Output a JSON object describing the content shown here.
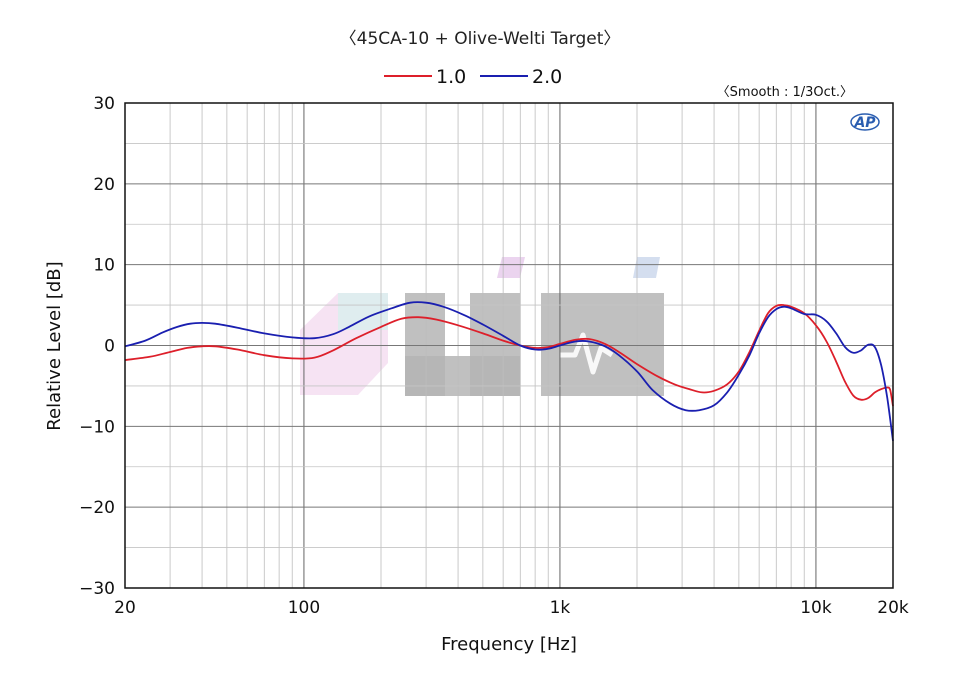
{
  "chart_data": {
    "type": "line",
    "title": "〈45CA-10 + Olive-Welti Target〉",
    "smoothing_note": "〈Smooth : 1/3Oct.〉",
    "xlabel": "Frequency [Hz]",
    "ylabel": "Relative Level [dB]",
    "x_scale": "log",
    "xlim": [
      20,
      20000
    ],
    "ylim": [
      -30,
      30
    ],
    "x_ticks": [
      {
        "value": 20,
        "label": "20"
      },
      {
        "value": 100,
        "label": "100"
      },
      {
        "value": 1000,
        "label": "1k"
      },
      {
        "value": 10000,
        "label": "10k"
      },
      {
        "value": 20000,
        "label": "20k"
      }
    ],
    "y_ticks": [
      {
        "value": 30,
        "label": "30"
      },
      {
        "value": 20,
        "label": "20"
      },
      {
        "value": 10,
        "label": "10"
      },
      {
        "value": 0,
        "label": "0"
      },
      {
        "value": -10,
        "label": "−10"
      },
      {
        "value": -20,
        "label": "−20"
      },
      {
        "value": -30,
        "label": "−30"
      }
    ],
    "grid": true,
    "legend_position": "top-center",
    "series": [
      {
        "name": "1.0",
        "color": "#dd1f2a",
        "points": [
          [
            20,
            -1.8
          ],
          [
            25,
            -1.4
          ],
          [
            30,
            -0.8
          ],
          [
            35,
            -0.3
          ],
          [
            40,
            -0.1
          ],
          [
            45,
            -0.1
          ],
          [
            55,
            -0.5
          ],
          [
            70,
            -1.2
          ],
          [
            90,
            -1.6
          ],
          [
            110,
            -1.5
          ],
          [
            130,
            -0.6
          ],
          [
            160,
            0.9
          ],
          [
            200,
            2.3
          ],
          [
            240,
            3.3
          ],
          [
            280,
            3.5
          ],
          [
            330,
            3.2
          ],
          [
            400,
            2.5
          ],
          [
            500,
            1.5
          ],
          [
            600,
            0.6
          ],
          [
            700,
            0.0
          ],
          [
            800,
            -0.3
          ],
          [
            900,
            -0.2
          ],
          [
            1000,
            0.2
          ],
          [
            1150,
            0.7
          ],
          [
            1300,
            0.8
          ],
          [
            1500,
            0.2
          ],
          [
            1700,
            -0.8
          ],
          [
            2000,
            -2.3
          ],
          [
            2400,
            -3.8
          ],
          [
            2800,
            -4.8
          ],
          [
            3200,
            -5.4
          ],
          [
            3600,
            -5.8
          ],
          [
            4000,
            -5.6
          ],
          [
            4500,
            -4.8
          ],
          [
            5000,
            -3.2
          ],
          [
            5500,
            -0.8
          ],
          [
            6000,
            1.8
          ],
          [
            6500,
            4.0
          ],
          [
            7000,
            4.9
          ],
          [
            7500,
            5.0
          ],
          [
            8000,
            4.8
          ],
          [
            9000,
            4.0
          ],
          [
            10000,
            2.5
          ],
          [
            11000,
            0.5
          ],
          [
            12000,
            -2.0
          ],
          [
            13000,
            -4.5
          ],
          [
            14000,
            -6.2
          ],
          [
            15000,
            -6.7
          ],
          [
            16000,
            -6.5
          ],
          [
            17000,
            -5.8
          ],
          [
            18000,
            -5.4
          ],
          [
            19000,
            -5.2
          ],
          [
            19500,
            -5.5
          ],
          [
            20000,
            -7.5
          ]
        ]
      },
      {
        "name": "2.0",
        "color": "#1a1fb0",
        "points": [
          [
            20,
            -0.1
          ],
          [
            24,
            0.6
          ],
          [
            28,
            1.6
          ],
          [
            32,
            2.3
          ],
          [
            36,
            2.7
          ],
          [
            40,
            2.8
          ],
          [
            45,
            2.7
          ],
          [
            55,
            2.2
          ],
          [
            70,
            1.5
          ],
          [
            90,
            1.0
          ],
          [
            110,
            0.9
          ],
          [
            130,
            1.4
          ],
          [
            150,
            2.3
          ],
          [
            180,
            3.6
          ],
          [
            220,
            4.6
          ],
          [
            260,
            5.3
          ],
          [
            300,
            5.3
          ],
          [
            350,
            4.8
          ],
          [
            420,
            3.8
          ],
          [
            500,
            2.6
          ],
          [
            600,
            1.2
          ],
          [
            700,
            0.0
          ],
          [
            800,
            -0.5
          ],
          [
            900,
            -0.4
          ],
          [
            1000,
            0.0
          ],
          [
            1150,
            0.5
          ],
          [
            1300,
            0.5
          ],
          [
            1500,
            -0.1
          ],
          [
            1700,
            -1.2
          ],
          [
            2000,
            -3.2
          ],
          [
            2300,
            -5.5
          ],
          [
            2700,
            -7.2
          ],
          [
            3100,
            -8.0
          ],
          [
            3500,
            -8.0
          ],
          [
            4000,
            -7.4
          ],
          [
            4500,
            -5.8
          ],
          [
            5000,
            -3.6
          ],
          [
            5500,
            -1.2
          ],
          [
            6000,
            1.5
          ],
          [
            6500,
            3.5
          ],
          [
            7000,
            4.5
          ],
          [
            7500,
            4.8
          ],
          [
            8000,
            4.6
          ],
          [
            9000,
            3.9
          ],
          [
            10000,
            3.8
          ],
          [
            11000,
            3.0
          ],
          [
            12000,
            1.5
          ],
          [
            13000,
            -0.2
          ],
          [
            14000,
            -0.9
          ],
          [
            15000,
            -0.6
          ],
          [
            16000,
            0.1
          ],
          [
            17000,
            -0.2
          ],
          [
            18000,
            -2.5
          ],
          [
            19000,
            -6.5
          ],
          [
            20000,
            -11.8
          ]
        ]
      }
    ]
  }
}
